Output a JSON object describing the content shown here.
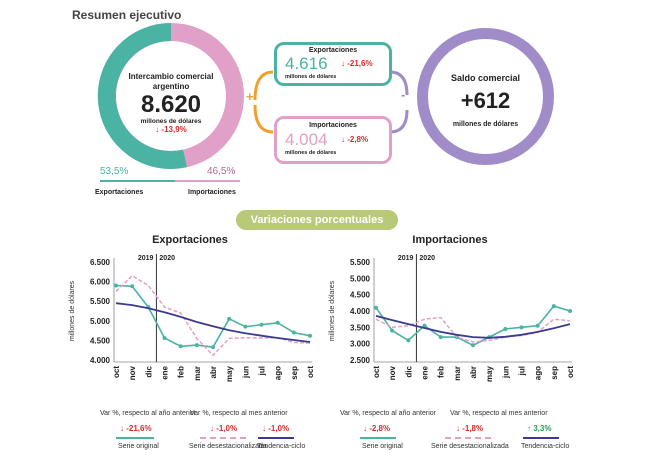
{
  "header": {
    "title": "Resumen ejecutivo"
  },
  "colors": {
    "teal": "#4bb3a3",
    "pink": "#e0a0c8",
    "purple": "#a08cc8",
    "red": "#d62b2b",
    "green": "#2a9d55",
    "navy": "#3b3a8f",
    "olive": "#b8c978"
  },
  "summary": {
    "intercambio": {
      "label": "Intercambio comercial argentino",
      "value": "8.620",
      "unit": "millones de dólares",
      "change": "↓ -13,9%",
      "share_exp": "53,5%",
      "share_imp": "46,5%",
      "exp_label": "Exportaciones",
      "imp_label": "Importaciones"
    },
    "exportaciones": {
      "label": "Exportaciones",
      "value": "4.616",
      "unit": "millones de dólares",
      "change": "↓ -21,6%"
    },
    "importaciones": {
      "label": "Importaciones",
      "value": "4.004",
      "unit": "millones de dólares",
      "change": "↓ -2,8%"
    },
    "saldo": {
      "label": "Saldo comercial",
      "value": "+612",
      "unit": "millones de dólares"
    },
    "plus": "+",
    "minus": "-"
  },
  "variaciones_label": "Variaciones porcentuales",
  "chart_data": [
    {
      "type": "line",
      "title": "Exportaciones",
      "ylabel": "millones de dólares",
      "categories": [
        "oct",
        "nov",
        "dic",
        "ene",
        "feb",
        "mar",
        "abr",
        "may",
        "jun",
        "jul",
        "ago",
        "sep",
        "oct"
      ],
      "year_labels": [
        "2019",
        "2020"
      ],
      "yticks": [
        "6.500",
        "6.000",
        "5.500",
        "5.000",
        "4.500",
        "4.000"
      ],
      "ylim": [
        4000,
        6500
      ],
      "series": [
        {
          "name": "Serie original",
          "values": [
            5900,
            5880,
            5350,
            4560,
            4350,
            4380,
            4330,
            5050,
            4850,
            4900,
            4950,
            4700,
            4620
          ]
        },
        {
          "name": "Serie desestacionalizada",
          "values": [
            5750,
            6150,
            5900,
            5350,
            5200,
            4550,
            4120,
            4550,
            4570,
            4560,
            4570,
            4450,
            4430
          ]
        },
        {
          "name": "Tendencia-ciclo",
          "values": [
            5450,
            5400,
            5320,
            5220,
            5100,
            4970,
            4860,
            4760,
            4680,
            4620,
            4560,
            4510,
            4460
          ]
        }
      ],
      "footer": {
        "orig_caption": "Var %, respecto al año anterior",
        "orig_value": "↓ -21,6%",
        "orig_name": "Serie original",
        "mes_caption": "Var %, respecto al mes anterior",
        "desest_value": "↓ -1,0%",
        "desest_name": "Serie desestacionalizada",
        "tend_value": "↓ -1,0%",
        "tend_name": "Tendencia-ciclo"
      }
    },
    {
      "type": "line",
      "title": "Importaciones",
      "ylabel": "millones de dólares",
      "categories": [
        "oct",
        "nov",
        "dic",
        "ene",
        "feb",
        "mar",
        "abr",
        "may",
        "jun",
        "jul",
        "ago",
        "sep",
        "oct"
      ],
      "year_labels": [
        "2019",
        "2020"
      ],
      "yticks": [
        "5.500",
        "5.000",
        "4.500",
        "4.000",
        "3.500",
        "3.000",
        "2.500"
      ],
      "ylim": [
        2500,
        5500
      ],
      "series": [
        {
          "name": "Serie original",
          "values": [
            4100,
            3400,
            3100,
            3550,
            3200,
            3200,
            2950,
            3200,
            3450,
            3500,
            3550,
            4150,
            4000
          ]
        },
        {
          "name": "Serie desestacionalizada",
          "values": [
            3750,
            3500,
            3550,
            3750,
            3800,
            3200,
            3050,
            3100,
            3200,
            3250,
            3350,
            3750,
            3700
          ]
        },
        {
          "name": "Tendencia-ciclo",
          "values": [
            3850,
            3720,
            3600,
            3480,
            3360,
            3270,
            3200,
            3180,
            3210,
            3270,
            3360,
            3470,
            3600
          ]
        }
      ],
      "footer": {
        "orig_caption": "Var %, respecto al año anterior",
        "orig_value": "↓ -2,8%",
        "orig_name": "Serie original",
        "mes_caption": "Var %, respecto al mes anterior",
        "desest_value": "↓ -1,8%",
        "desest_name": "Serie desestacionalizada",
        "tend_value": "↑ 3,3%",
        "tend_name": "Tendencia-ciclo"
      }
    }
  ]
}
